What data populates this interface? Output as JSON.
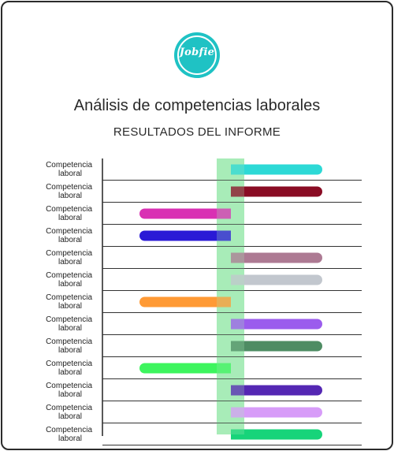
{
  "logo": {
    "text": "Jobfie",
    "color": "#1fc2c4"
  },
  "title": "Análisis de competencias laborales",
  "subtitle": "RESULTADOS DEL INFORME",
  "chart_data": {
    "type": "bar",
    "orientation": "horizontal-diverging",
    "row_label_lines": [
      "Competencia",
      "laboral"
    ],
    "reference_band": {
      "from": -1,
      "to": 1,
      "color": "#a8edb9"
    },
    "xlim": [
      -7,
      7
    ],
    "rows": [
      {
        "label": "Competencia laboral",
        "value": 6.5,
        "color": "#2dd9d6"
      },
      {
        "label": "Competencia laboral",
        "value": 6.5,
        "color": "#8a0c24"
      },
      {
        "label": "Competencia laboral",
        "value": -6.5,
        "color": "#d930b3"
      },
      {
        "label": "Competencia laboral",
        "value": -6.5,
        "color": "#2a1ad6"
      },
      {
        "label": "Competencia laboral",
        "value": 6.5,
        "color": "#ad7a93"
      },
      {
        "label": "Competencia laboral",
        "value": 6.5,
        "color": "#c2c7ce"
      },
      {
        "label": "Competencia laboral",
        "value": -6.5,
        "color": "#ff9a35"
      },
      {
        "label": "Competencia laboral",
        "value": 6.5,
        "color": "#9b5ced"
      },
      {
        "label": "Competencia laboral",
        "value": 6.5,
        "color": "#4e8c63"
      },
      {
        "label": "Competencia laboral",
        "value": -6.5,
        "color": "#3df55e"
      },
      {
        "label": "Competencia laboral",
        "value": 6.5,
        "color": "#5427b3"
      },
      {
        "label": "Competencia laboral",
        "value": 6.5,
        "color": "#d79cf8"
      },
      {
        "label": "Competencia laboral",
        "value": 6.5,
        "color": "#17d47a"
      }
    ]
  }
}
